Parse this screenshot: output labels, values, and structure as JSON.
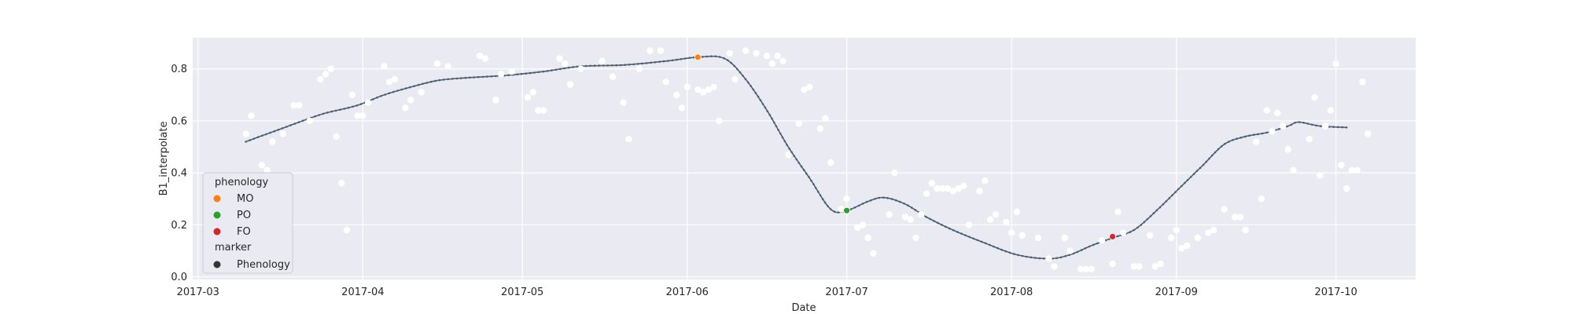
{
  "chart_data": {
    "type": "scatter",
    "xlabel": "Date",
    "ylabel": "B1_interpolate",
    "xlim": [
      "2017-02-28",
      "2017-10-16"
    ],
    "ylim": [
      -0.01,
      0.92
    ],
    "grid": true,
    "x_ticks": [
      {
        "date": "2017-03-01",
        "label": "2017-03"
      },
      {
        "date": "2017-04-01",
        "label": "2017-04"
      },
      {
        "date": "2017-05-01",
        "label": "2017-05"
      },
      {
        "date": "2017-06-01",
        "label": "2017-06"
      },
      {
        "date": "2017-07-01",
        "label": "2017-07"
      },
      {
        "date": "2017-08-01",
        "label": "2017-08"
      },
      {
        "date": "2017-09-01",
        "label": "2017-09"
      },
      {
        "date": "2017-10-01",
        "label": "2017-10"
      }
    ],
    "y_ticks": [
      {
        "value": 0.0,
        "label": "0.0"
      },
      {
        "value": 0.2,
        "label": "0.2"
      },
      {
        "value": 0.4,
        "label": "0.4"
      },
      {
        "value": 0.6,
        "label": "0.6"
      },
      {
        "value": 0.8,
        "label": "0.8"
      }
    ],
    "interpolated_curve": {
      "color": "#4c6072",
      "points": [
        [
          "2017-03-10",
          0.52
        ],
        [
          "2017-03-14",
          0.55
        ],
        [
          "2017-03-18",
          0.58
        ],
        [
          "2017-03-22",
          0.61
        ],
        [
          "2017-03-25",
          0.63
        ],
        [
          "2017-03-31",
          0.66
        ],
        [
          "2017-04-05",
          0.7
        ],
        [
          "2017-04-10",
          0.73
        ],
        [
          "2017-04-15",
          0.755
        ],
        [
          "2017-04-20",
          0.765
        ],
        [
          "2017-04-28",
          0.775
        ],
        [
          "2017-05-05",
          0.79
        ],
        [
          "2017-05-12",
          0.81
        ],
        [
          "2017-05-20",
          0.815
        ],
        [
          "2017-05-28",
          0.83
        ],
        [
          "2017-06-03",
          0.845
        ],
        [
          "2017-06-08",
          0.84
        ],
        [
          "2017-06-12",
          0.76
        ],
        [
          "2017-06-16",
          0.64
        ],
        [
          "2017-06-20",
          0.5
        ],
        [
          "2017-06-24",
          0.38
        ],
        [
          "2017-06-28",
          0.26
        ],
        [
          "2017-07-01",
          0.255
        ],
        [
          "2017-07-05",
          0.29
        ],
        [
          "2017-07-08",
          0.305
        ],
        [
          "2017-07-12",
          0.28
        ],
        [
          "2017-07-16",
          0.23
        ],
        [
          "2017-07-21",
          0.18
        ],
        [
          "2017-07-27",
          0.13
        ],
        [
          "2017-08-02",
          0.085
        ],
        [
          "2017-08-08",
          0.07
        ],
        [
          "2017-08-12",
          0.085
        ],
        [
          "2017-08-16",
          0.12
        ],
        [
          "2017-08-20",
          0.15
        ],
        [
          "2017-08-24",
          0.18
        ],
        [
          "2017-08-28",
          0.25
        ],
        [
          "2017-09-02",
          0.35
        ],
        [
          "2017-09-06",
          0.43
        ],
        [
          "2017-09-10",
          0.51
        ],
        [
          "2017-09-14",
          0.54
        ],
        [
          "2017-09-18",
          0.555
        ],
        [
          "2017-09-22",
          0.58
        ],
        [
          "2017-09-24",
          0.595
        ],
        [
          "2017-09-28",
          0.58
        ],
        [
          "2017-10-03",
          0.575
        ]
      ]
    },
    "observations": {
      "color": "#ffffff",
      "points": [
        [
          "2017-03-10",
          0.55
        ],
        [
          "2017-03-11",
          0.62
        ],
        [
          "2017-03-13",
          0.43
        ],
        [
          "2017-03-14",
          0.41
        ],
        [
          "2017-03-15",
          0.52
        ],
        [
          "2017-03-17",
          0.55
        ],
        [
          "2017-03-19",
          0.66
        ],
        [
          "2017-03-20",
          0.66
        ],
        [
          "2017-03-22",
          0.6
        ],
        [
          "2017-03-24",
          0.76
        ],
        [
          "2017-03-25",
          0.78
        ],
        [
          "2017-03-26",
          0.8
        ],
        [
          "2017-03-27",
          0.54
        ],
        [
          "2017-03-28",
          0.36
        ],
        [
          "2017-03-29",
          0.18
        ],
        [
          "2017-03-30",
          0.7
        ],
        [
          "2017-03-31",
          0.62
        ],
        [
          "2017-04-01",
          0.62
        ],
        [
          "2017-04-02",
          0.67
        ],
        [
          "2017-04-05",
          0.81
        ],
        [
          "2017-04-06",
          0.75
        ],
        [
          "2017-04-07",
          0.76
        ],
        [
          "2017-04-09",
          0.65
        ],
        [
          "2017-04-10",
          0.68
        ],
        [
          "2017-04-12",
          0.71
        ],
        [
          "2017-04-15",
          0.82
        ],
        [
          "2017-04-17",
          0.81
        ],
        [
          "2017-04-23",
          0.85
        ],
        [
          "2017-04-24",
          0.84
        ],
        [
          "2017-04-26",
          0.68
        ],
        [
          "2017-04-27",
          0.78
        ],
        [
          "2017-04-29",
          0.79
        ],
        [
          "2017-05-02",
          0.69
        ],
        [
          "2017-05-03",
          0.71
        ],
        [
          "2017-05-04",
          0.64
        ],
        [
          "2017-05-05",
          0.64
        ],
        [
          "2017-05-08",
          0.84
        ],
        [
          "2017-05-09",
          0.82
        ],
        [
          "2017-05-10",
          0.74
        ],
        [
          "2017-05-12",
          0.8
        ],
        [
          "2017-05-16",
          0.83
        ],
        [
          "2017-05-18",
          0.77
        ],
        [
          "2017-05-20",
          0.67
        ],
        [
          "2017-05-21",
          0.53
        ],
        [
          "2017-05-23",
          0.8
        ],
        [
          "2017-05-25",
          0.87
        ],
        [
          "2017-05-27",
          0.87
        ],
        [
          "2017-05-28",
          0.75
        ],
        [
          "2017-05-30",
          0.7
        ],
        [
          "2017-05-31",
          0.65
        ],
        [
          "2017-06-01",
          0.73
        ],
        [
          "2017-06-03",
          0.72
        ],
        [
          "2017-06-04",
          0.71
        ],
        [
          "2017-06-05",
          0.72
        ],
        [
          "2017-06-06",
          0.73
        ],
        [
          "2017-06-07",
          0.6
        ],
        [
          "2017-06-09",
          0.86
        ],
        [
          "2017-06-10",
          0.76
        ],
        [
          "2017-06-12",
          0.87
        ],
        [
          "2017-06-14",
          0.86
        ],
        [
          "2017-06-16",
          0.85
        ],
        [
          "2017-06-17",
          0.82
        ],
        [
          "2017-06-18",
          0.85
        ],
        [
          "2017-06-19",
          0.83
        ],
        [
          "2017-06-20",
          0.47
        ],
        [
          "2017-06-22",
          0.59
        ],
        [
          "2017-06-23",
          0.72
        ],
        [
          "2017-06-24",
          0.73
        ],
        [
          "2017-06-26",
          0.57
        ],
        [
          "2017-06-27",
          0.61
        ],
        [
          "2017-06-28",
          0.44
        ],
        [
          "2017-06-30",
          0.26
        ],
        [
          "2017-07-01",
          0.3
        ],
        [
          "2017-07-03",
          0.19
        ],
        [
          "2017-07-04",
          0.2
        ],
        [
          "2017-07-05",
          0.15
        ],
        [
          "2017-07-06",
          0.09
        ],
        [
          "2017-07-09",
          0.24
        ],
        [
          "2017-07-10",
          0.4
        ],
        [
          "2017-07-12",
          0.23
        ],
        [
          "2017-07-13",
          0.22
        ],
        [
          "2017-07-14",
          0.15
        ],
        [
          "2017-07-15",
          0.24
        ],
        [
          "2017-07-16",
          0.32
        ],
        [
          "2017-07-17",
          0.36
        ],
        [
          "2017-07-18",
          0.34
        ],
        [
          "2017-07-19",
          0.34
        ],
        [
          "2017-07-20",
          0.34
        ],
        [
          "2017-07-21",
          0.33
        ],
        [
          "2017-07-22",
          0.34
        ],
        [
          "2017-07-23",
          0.35
        ],
        [
          "2017-07-24",
          0.2
        ],
        [
          "2017-07-26",
          0.33
        ],
        [
          "2017-07-27",
          0.37
        ],
        [
          "2017-07-28",
          0.22
        ],
        [
          "2017-07-29",
          0.24
        ],
        [
          "2017-07-31",
          0.21
        ],
        [
          "2017-08-01",
          0.17
        ],
        [
          "2017-08-02",
          0.25
        ],
        [
          "2017-08-03",
          0.16
        ],
        [
          "2017-08-06",
          0.15
        ],
        [
          "2017-08-08",
          0.07
        ],
        [
          "2017-08-09",
          0.04
        ],
        [
          "2017-08-11",
          0.15
        ],
        [
          "2017-08-12",
          0.1
        ],
        [
          "2017-08-14",
          0.03
        ],
        [
          "2017-08-15",
          0.03
        ],
        [
          "2017-08-16",
          0.03
        ],
        [
          "2017-08-18",
          0.14
        ],
        [
          "2017-08-20",
          0.05
        ],
        [
          "2017-08-21",
          0.25
        ],
        [
          "2017-08-22",
          0.17
        ],
        [
          "2017-08-24",
          0.04
        ],
        [
          "2017-08-25",
          0.04
        ],
        [
          "2017-08-27",
          0.16
        ],
        [
          "2017-08-28",
          0.04
        ],
        [
          "2017-08-29",
          0.05
        ],
        [
          "2017-08-31",
          0.15
        ],
        [
          "2017-09-01",
          0.18
        ],
        [
          "2017-09-02",
          0.11
        ],
        [
          "2017-09-03",
          0.12
        ],
        [
          "2017-09-05",
          0.15
        ],
        [
          "2017-09-07",
          0.17
        ],
        [
          "2017-09-08",
          0.18
        ],
        [
          "2017-09-10",
          0.26
        ],
        [
          "2017-09-12",
          0.23
        ],
        [
          "2017-09-13",
          0.23
        ],
        [
          "2017-09-14",
          0.18
        ],
        [
          "2017-09-16",
          0.52
        ],
        [
          "2017-09-17",
          0.3
        ],
        [
          "2017-09-18",
          0.64
        ],
        [
          "2017-09-19",
          0.56
        ],
        [
          "2017-09-20",
          0.63
        ],
        [
          "2017-09-21",
          0.58
        ],
        [
          "2017-09-22",
          0.49
        ],
        [
          "2017-09-23",
          0.41
        ],
        [
          "2017-09-26",
          0.53
        ],
        [
          "2017-09-27",
          0.69
        ],
        [
          "2017-09-28",
          0.39
        ],
        [
          "2017-09-29",
          0.58
        ],
        [
          "2017-09-30",
          0.64
        ],
        [
          "2017-10-01",
          0.82
        ],
        [
          "2017-10-02",
          0.43
        ],
        [
          "2017-10-03",
          0.34
        ],
        [
          "2017-10-04",
          0.41
        ],
        [
          "2017-10-05",
          0.41
        ],
        [
          "2017-10-06",
          0.75
        ],
        [
          "2017-10-07",
          0.55
        ]
      ]
    },
    "phenology_points": [
      {
        "name": "MO",
        "date": "2017-06-03",
        "value": 0.845,
        "color": "#ff7f0e"
      },
      {
        "name": "PO",
        "date": "2017-07-01",
        "value": 0.255,
        "color": "#2ca02c"
      },
      {
        "name": "FO",
        "date": "2017-08-20",
        "value": 0.155,
        "color": "#d62728"
      }
    ],
    "legend": {
      "placement": "lower-left",
      "title": "phenology",
      "entries": [
        {
          "label": "MO",
          "color": "#ff7f0e"
        },
        {
          "label": "PO",
          "color": "#2ca02c"
        },
        {
          "label": "FO",
          "color": "#d62728"
        }
      ],
      "subtitle": "marker",
      "marker_entries": [
        {
          "label": "Phenology",
          "color": "#333333"
        }
      ]
    }
  }
}
